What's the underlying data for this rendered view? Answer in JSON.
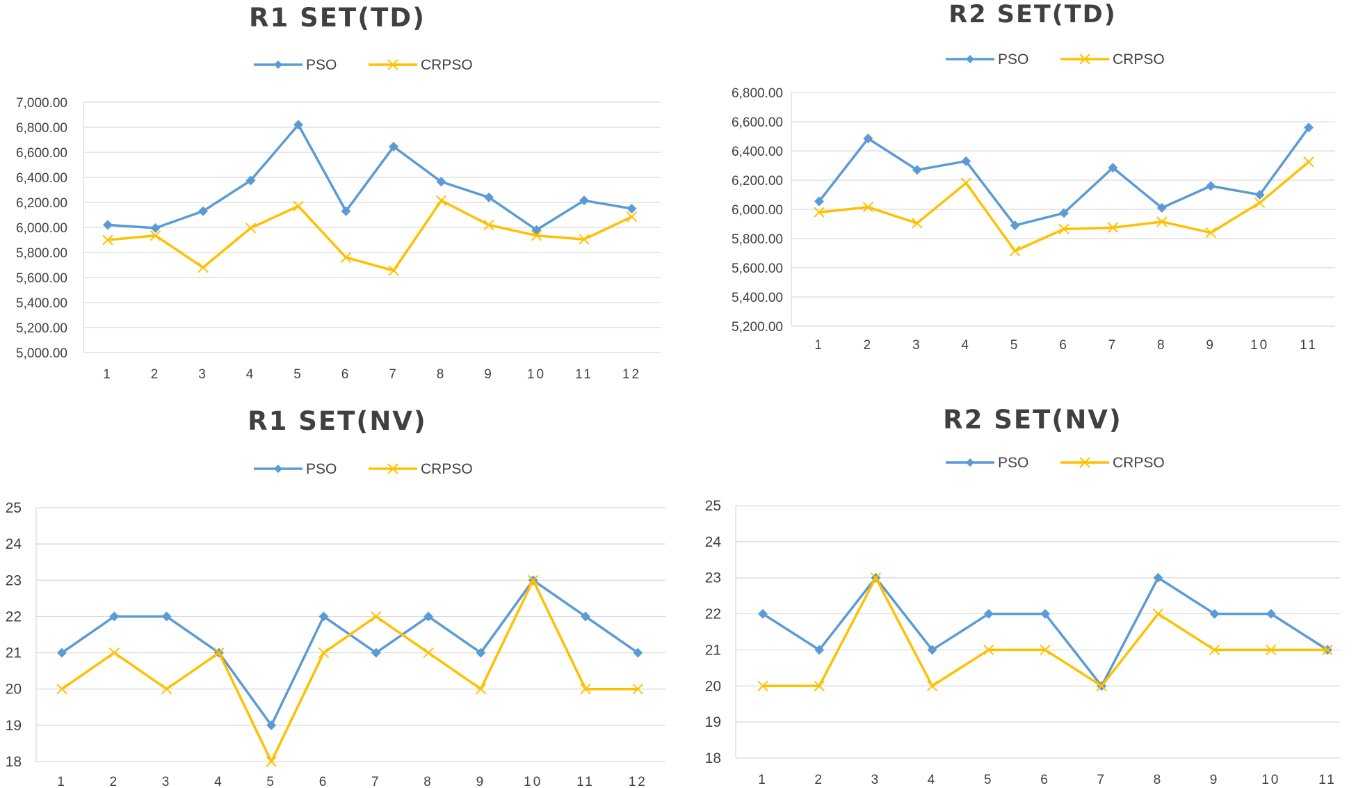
{
  "chart_data": [
    {
      "type": "line",
      "title": "R1 SET(TD)",
      "x": [
        1,
        2,
        3,
        4,
        5,
        6,
        7,
        8,
        9,
        10,
        11,
        12
      ],
      "ylim": [
        5000,
        7000
      ],
      "yticks": [
        "5,000.00",
        "5,200.00",
        "5,400.00",
        "5,600.00",
        "5,800.00",
        "6,000.00",
        "6,200.00",
        "6,400.00",
        "6,600.00",
        "6,800.00",
        "7,000.00"
      ],
      "grid": true,
      "legend": "top",
      "series": [
        {
          "name": "PSO",
          "color": "#5b9bd5",
          "marker": "diamond",
          "values": [
            6020,
            5995,
            6130,
            6375,
            6820,
            6130,
            6645,
            6365,
            6240,
            5980,
            6215,
            6150
          ]
        },
        {
          "name": "CRPSO",
          "color": "#ffc000",
          "marker": "x",
          "values": [
            5900,
            5935,
            5680,
            5995,
            6170,
            5760,
            5655,
            6215,
            6020,
            5935,
            5905,
            6085
          ]
        }
      ]
    },
    {
      "type": "line",
      "title": "R2 SET(TD)",
      "x": [
        1,
        2,
        3,
        4,
        5,
        6,
        7,
        8,
        9,
        10,
        11
      ],
      "ylim": [
        5200,
        6800
      ],
      "yticks": [
        "5,200.00",
        "5,400.00",
        "5,600.00",
        "5,800.00",
        "6,000.00",
        "6,200.00",
        "6,400.00",
        "6,600.00",
        "6,800.00"
      ],
      "grid": true,
      "legend": "top",
      "series": [
        {
          "name": "PSO",
          "color": "#5b9bd5",
          "marker": "diamond",
          "values": [
            6055,
            6485,
            6270,
            6330,
            5890,
            5975,
            6285,
            6010,
            6160,
            6100,
            6560
          ]
        },
        {
          "name": "CRPSO",
          "color": "#ffc000",
          "marker": "x",
          "values": [
            5980,
            6015,
            5905,
            6180,
            5715,
            5865,
            5875,
            5915,
            5840,
            6045,
            6325
          ]
        }
      ]
    },
    {
      "type": "line",
      "title": "R1 SET(NV)",
      "x": [
        1,
        2,
        3,
        4,
        5,
        6,
        7,
        8,
        9,
        10,
        11,
        12
      ],
      "ylim": [
        18,
        25
      ],
      "yticks": [
        "18",
        "19",
        "20",
        "21",
        "22",
        "23",
        "24",
        "25"
      ],
      "grid": true,
      "legend": "top",
      "series": [
        {
          "name": "PSO",
          "color": "#5b9bd5",
          "marker": "diamond",
          "values": [
            21,
            22,
            22,
            21,
            19,
            22,
            21,
            22,
            21,
            23,
            22,
            21
          ]
        },
        {
          "name": "CRPSO",
          "color": "#ffc000",
          "marker": "x",
          "values": [
            20,
            21,
            20,
            21,
            18,
            21,
            22,
            21,
            20,
            23,
            20,
            20
          ]
        }
      ]
    },
    {
      "type": "line",
      "title": "R2 SET(NV)",
      "x": [
        1,
        2,
        3,
        4,
        5,
        6,
        7,
        8,
        9,
        10,
        11
      ],
      "ylim": [
        18,
        25
      ],
      "yticks": [
        "18",
        "19",
        "20",
        "21",
        "22",
        "23",
        "24",
        "25"
      ],
      "grid": true,
      "legend": "top",
      "series": [
        {
          "name": "PSO",
          "color": "#5b9bd5",
          "marker": "diamond",
          "values": [
            22,
            21,
            23,
            21,
            22,
            22,
            20,
            23,
            22,
            22,
            21
          ]
        },
        {
          "name": "CRPSO",
          "color": "#ffc000",
          "marker": "x",
          "values": [
            20,
            20,
            23,
            20,
            21,
            21,
            20,
            22,
            21,
            21,
            21
          ]
        }
      ]
    }
  ]
}
